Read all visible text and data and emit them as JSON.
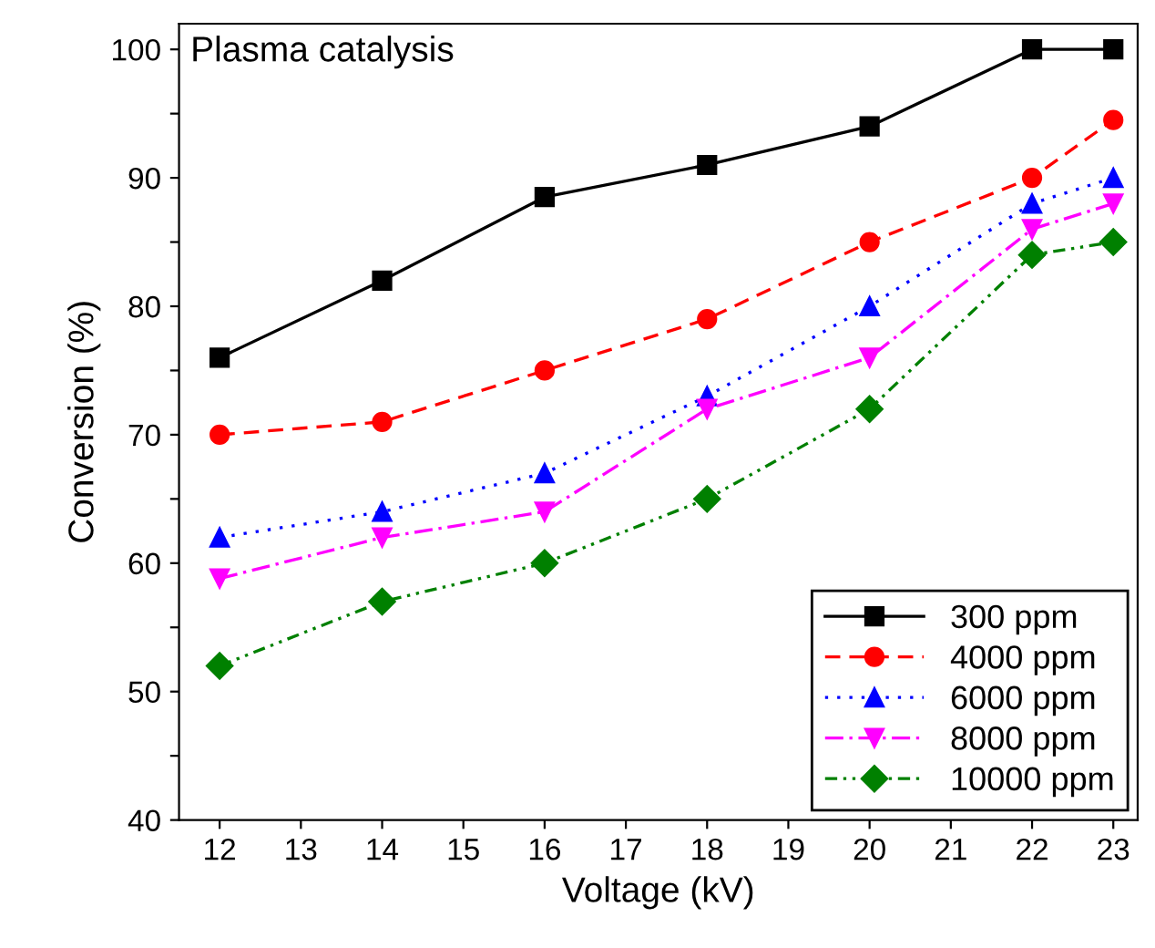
{
  "chart_data": {
    "type": "line",
    "annotations": [
      "Plasma catalysis"
    ],
    "xlabel": "Voltage (kV)",
    "ylabel": "Conversion (%)",
    "x": [
      12,
      14,
      16,
      18,
      20,
      22,
      23
    ],
    "xlim": [
      11.5,
      23.3
    ],
    "xticks": [
      12,
      13,
      14,
      15,
      16,
      17,
      18,
      19,
      20,
      21,
      22,
      23
    ],
    "ylim": [
      40,
      102
    ],
    "yticks": [
      40,
      {
        "value": 45,
        "label": null
      },
      50,
      {
        "value": 55,
        "label": null
      },
      60,
      {
        "value": 65,
        "label": null
      },
      70,
      {
        "value": 75,
        "label": null
      },
      80,
      {
        "value": 85,
        "label": null
      },
      90,
      {
        "value": 95,
        "label": null
      },
      100
    ],
    "grid": false,
    "legend": "bottom right",
    "series": [
      {
        "name": "300 ppm",
        "color": "#000000",
        "marker": "square",
        "line_style": "solid",
        "values": [
          76,
          82,
          88.5,
          91,
          94,
          100,
          100
        ]
      },
      {
        "name": "4000 ppm",
        "color": "#ff0000",
        "marker": "circle",
        "line_style": "dashed",
        "values": [
          70,
          71,
          75,
          79,
          85,
          90,
          94.5
        ]
      },
      {
        "name": "6000 ppm",
        "color": "#0000ff",
        "marker": "triangle",
        "line_style": "dotted",
        "values": [
          62,
          64,
          67,
          73,
          80,
          88,
          90
        ]
      },
      {
        "name": "8000 ppm",
        "color": "#ff00ff",
        "marker": "triangle_down",
        "line_style": "dashdot",
        "values": [
          58.8,
          62,
          64,
          72,
          76,
          86,
          88
        ]
      },
      {
        "name": "10000 ppm",
        "color": "#008000",
        "marker": "diamond",
        "line_style": "dashdotdot",
        "values": [
          52,
          57,
          60,
          65,
          72,
          84,
          85
        ]
      }
    ]
  }
}
